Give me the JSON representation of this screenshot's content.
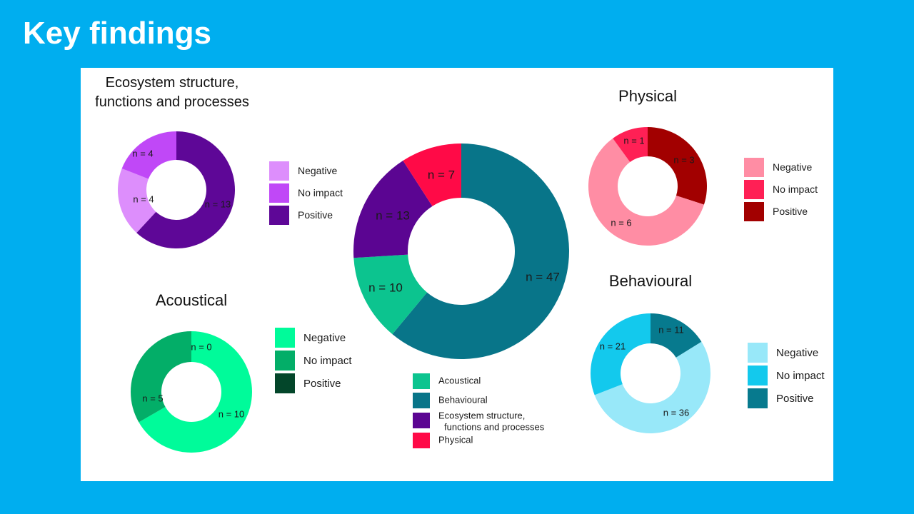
{
  "slide": {
    "title": "Key findings"
  },
  "chart_data": [
    {
      "type": "pie",
      "id": "overall",
      "title": "",
      "categories": [
        "Acoustical",
        "Behavioural",
        "Ecosystem structure, functions and processes",
        "Physical"
      ],
      "values": [
        10,
        47,
        13,
        7
      ],
      "labels": [
        "n = 10",
        "n = 47",
        "n = 13",
        "n = 7"
      ],
      "colors": [
        "#0CC48F",
        "#087589",
        "#5B0592",
        "#FF0A47"
      ],
      "legend": [
        "Acoustical",
        "Behavioural",
        "Ecosystem structure,",
        "functions and processes",
        "Physical"
      ],
      "legend_position": "bottom"
    },
    {
      "type": "pie",
      "id": "ecosystem",
      "title_lines": [
        "Ecosystem structure,",
        "functions and processes"
      ],
      "categories": [
        "Negative",
        "No impact",
        "Positive"
      ],
      "values": [
        4,
        4,
        13
      ],
      "labels": [
        "n = 4",
        "n = 4",
        "n = 13"
      ],
      "colors": [
        "#DD8EFC",
        "#C048F7",
        "#5E0797"
      ],
      "legend": [
        "Negative",
        "No impact",
        "Positive"
      ],
      "legend_position": "right"
    },
    {
      "type": "pie",
      "id": "physical",
      "title_lines": [
        "Physical"
      ],
      "categories": [
        "Negative",
        "No impact",
        "Positive"
      ],
      "values": [
        6,
        1,
        3
      ],
      "labels": [
        "n = 6",
        "n = 1",
        "n = 3"
      ],
      "colors": [
        "#FF8DA4",
        "#FF2055",
        "#A20000"
      ],
      "legend": [
        "Negative",
        "No impact",
        "Positive"
      ],
      "legend_position": "right"
    },
    {
      "type": "pie",
      "id": "acoustical",
      "title_lines": [
        "Acoustical"
      ],
      "categories": [
        "Negative",
        "No impact",
        "Positive"
      ],
      "values": [
        10,
        5,
        0
      ],
      "labels": [
        "n = 10",
        "n = 5",
        "n = 0"
      ],
      "colors": [
        "#00FB9A",
        "#03AE68",
        "#03462A"
      ],
      "legend": [
        "Negative",
        "No impact",
        "Positive"
      ],
      "legend_position": "right"
    },
    {
      "type": "pie",
      "id": "behavioural",
      "title_lines": [
        "Behavioural"
      ],
      "categories": [
        "Negative",
        "No impact",
        "Positive"
      ],
      "values": [
        36,
        21,
        11
      ],
      "labels": [
        "n = 36",
        "n = 21",
        "n = 11"
      ],
      "colors": [
        "#98E8F9",
        "#13C9ED",
        "#077A8E"
      ],
      "legend": [
        "Negative",
        "No impact",
        "Positive"
      ],
      "legend_position": "right"
    }
  ]
}
